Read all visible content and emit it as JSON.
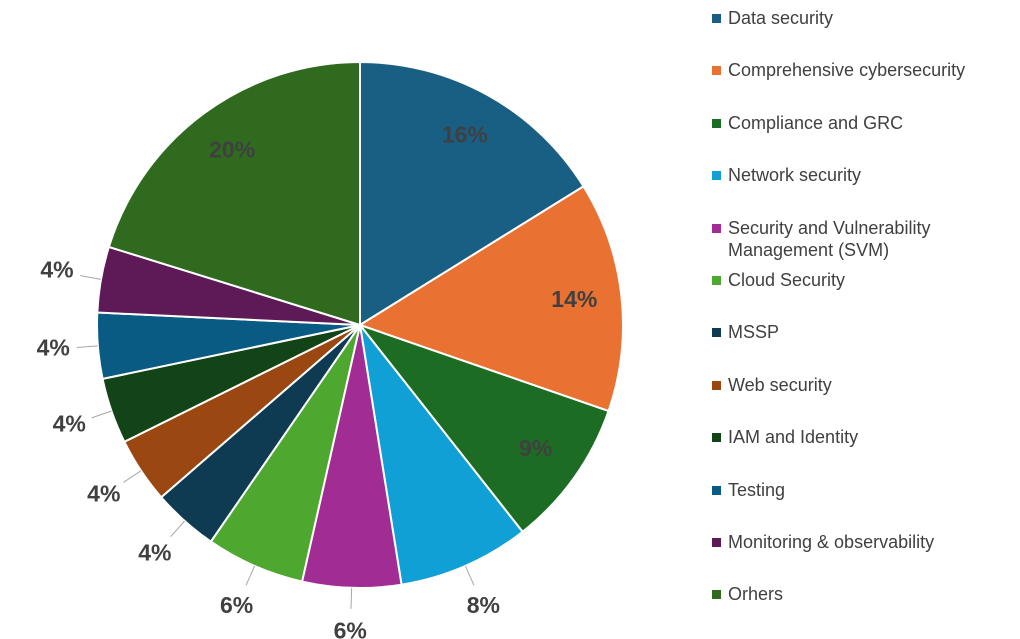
{
  "chart_data": {
    "type": "pie",
    "categories": [
      "Data security",
      "Comprehensive cybersecurity",
      "Compliance and GRC",
      "Network security",
      "Security and Vulnerability Management (SVM)",
      "Cloud Security",
      "MSSP",
      "Web security",
      "IAM and Identity",
      "Testing",
      "Monitoring & observability",
      "Orhers"
    ],
    "values": [
      16,
      14,
      9,
      8,
      6,
      6,
      4,
      4,
      4,
      4,
      4,
      20
    ],
    "value_labels": [
      "16%",
      "14%",
      "9%",
      "8%",
      "6%",
      "6%",
      "4%",
      "4%",
      "4%",
      "4%",
      "4%",
      "20%"
    ],
    "colors": [
      "#195e83",
      "#e97132",
      "#1c6d23",
      "#10a0d6",
      "#a12c93",
      "#4ea72e",
      "#0e3a52",
      "#9a4711",
      "#134417",
      "#0a5b84",
      "#5d1a56",
      "#2f6a1f"
    ],
    "legend": "right"
  }
}
